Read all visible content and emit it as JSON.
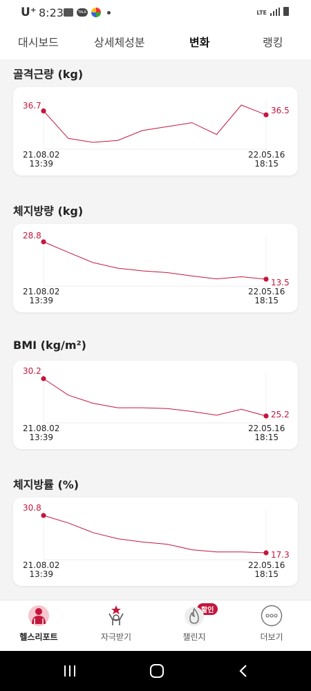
{
  "status": {
    "carrier": "U⁺",
    "time": "8:23",
    "network": "LTE"
  },
  "tabs": [
    {
      "label": "대시보드",
      "active": false
    },
    {
      "label": "상세체성분",
      "active": false
    },
    {
      "label": "변화",
      "active": true
    },
    {
      "label": "랭킹",
      "active": false
    }
  ],
  "sections": [
    {
      "title": "골격근량 (kg)",
      "start_label": "36.7",
      "end_label": "36.5",
      "start_date": "21.08.02",
      "start_time": "13:39",
      "end_date": "22.05.16",
      "end_time": "18:15"
    },
    {
      "title": "체지방량 (kg)",
      "start_label": "28.8",
      "end_label": "13.5",
      "start_date": "21.08.02",
      "start_time": "13:39",
      "end_date": "22.05.16",
      "end_time": "18:15"
    },
    {
      "title": "BMI (kg/m²)",
      "start_label": "30.2",
      "end_label": "25.2",
      "start_date": "21.08.02",
      "start_time": "13:39",
      "end_date": "22.05.16",
      "end_time": "18:15"
    },
    {
      "title": "체지방률 (%)",
      "start_label": "30.8",
      "end_label": "17.3",
      "start_date": "21.08.02",
      "start_time": "13:39",
      "end_date": "22.05.16",
      "end_time": "18:15"
    }
  ],
  "chart_data": [
    {
      "type": "line",
      "title": "골격근량 (kg)",
      "x": [
        "21.08.02 13:39",
        "",
        "",
        "",
        "",
        "",
        "",
        "",
        "",
        "22.05.16 18:15"
      ],
      "values": [
        36.7,
        35.3,
        35.1,
        35.2,
        35.7,
        35.9,
        36.1,
        35.5,
        37.0,
        36.5
      ]
    },
    {
      "type": "line",
      "title": "체지방량 (kg)",
      "x": [
        "21.08.02 13:39",
        "",
        "",
        "",
        "",
        "",
        "",
        "",
        "",
        "22.05.16 18:15"
      ],
      "values": [
        28.8,
        24.5,
        20.3,
        18.0,
        16.9,
        16.2,
        14.8,
        13.6,
        14.5,
        13.5
      ]
    },
    {
      "type": "line",
      "title": "BMI (kg/m²)",
      "x": [
        "21.08.02 13:39",
        "",
        "",
        "",
        "",
        "",
        "",
        "",
        "",
        "22.05.16 18:15"
      ],
      "values": [
        30.2,
        28.0,
        26.9,
        26.3,
        26.3,
        26.2,
        25.8,
        25.3,
        26.1,
        25.2
      ]
    },
    {
      "type": "line",
      "title": "체지방률 (%)",
      "x": [
        "21.08.02 13:39",
        "",
        "",
        "",
        "",
        "",
        "",
        "",
        "",
        "22.05.16 18:15"
      ],
      "values": [
        30.8,
        28.1,
        24.6,
        22.4,
        21.2,
        20.4,
        18.4,
        17.6,
        17.6,
        17.3
      ]
    }
  ],
  "bottom_nav": [
    {
      "label": "헬스리포트",
      "icon": "health-report-icon",
      "active": true
    },
    {
      "label": "자극받기",
      "icon": "motivation-icon",
      "active": false
    },
    {
      "label": "챌린지",
      "icon": "challenge-icon",
      "active": false,
      "badge": "할인"
    },
    {
      "label": "더보기",
      "icon": "more-icon",
      "active": false
    }
  ],
  "colors": {
    "accent": "#c4163c",
    "line": "#c4163c"
  }
}
